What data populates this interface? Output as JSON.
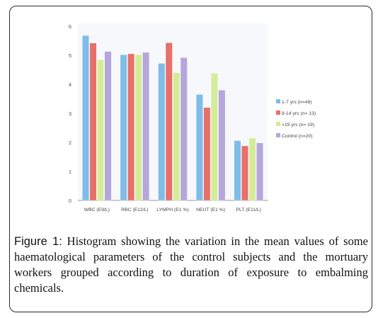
{
  "chart_data": {
    "type": "bar",
    "title": "",
    "xlabel": "",
    "ylabel": "",
    "ylim": [
      0,
      6
    ],
    "yticks": [
      "0",
      "1",
      "2",
      "3",
      "4",
      "5",
      "6"
    ],
    "categories": [
      "WBC (E9/L)",
      "RBC (E12/L)",
      "LYMPH (E1 %)",
      "NEUT (E1 %)",
      "PLT (E11/L)"
    ],
    "series": [
      {
        "name": "1-7 yrs (n=48)",
        "color": "#7fbde8",
        "values": [
          5.68,
          5.02,
          4.72,
          3.65,
          2.06
        ]
      },
      {
        "name": "8-14 yrs (n= 13)",
        "color": "#e8706a",
        "values": [
          5.42,
          5.05,
          5.43,
          3.2,
          1.88
        ]
      },
      {
        "name": ">15 yrs (n= 19)",
        "color": "#d4ec98",
        "values": [
          4.85,
          5.02,
          4.4,
          4.38,
          2.15
        ]
      },
      {
        "name": "Control (n=20)",
        "color": "#b5a6dc",
        "values": [
          5.13,
          5.1,
          4.92,
          3.8,
          1.98
        ]
      }
    ],
    "grid": false,
    "legend_position": "right"
  },
  "caption": {
    "label": "Figure 1:",
    "text": " Histogram showing the variation in the mean values of some haematological parameters of the control subjects and the mortuary workers grouped according to duration of exposure to embalming chemicals."
  }
}
